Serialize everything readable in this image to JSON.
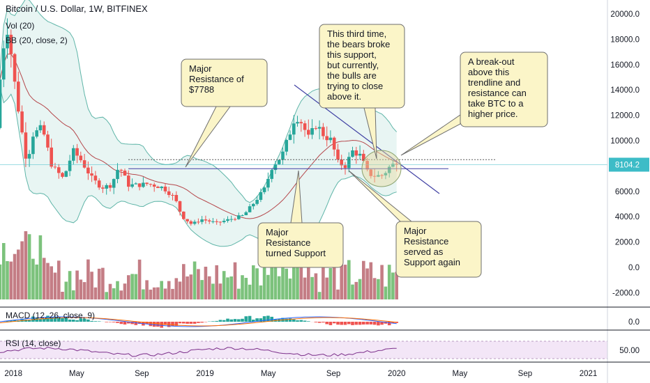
{
  "legends": {
    "title": "Bitcoin / U.S. Dollar, 1W, BITFINEX",
    "vol": "Vol (20)",
    "bb": "BB (20, close, 2)",
    "macd": "MACD (12, 26, close, 9)",
    "rsi": "RSI (14, close)"
  },
  "price_axis": {
    "labels": [
      "20000.0",
      "18000.0",
      "16000.0",
      "14000.0",
      "12000.0",
      "10000.0",
      "6000.0",
      "4000.0",
      "2000.0",
      "0.0",
      "-2000.0"
    ],
    "values": [
      20000,
      18000,
      16000,
      14000,
      12000,
      10000,
      6000,
      4000,
      2000,
      0,
      -2000
    ],
    "last_price_label": "8104.2",
    "last_price": 8104.2
  },
  "macd_axis": {
    "labels": [
      "0.0"
    ],
    "values": [
      0
    ]
  },
  "rsi_axis": {
    "labels": [
      "50.00"
    ],
    "values": [
      50
    ]
  },
  "time_axis": {
    "labels": [
      "2018",
      "May",
      "Sep",
      "2019",
      "May",
      "Sep",
      "2020",
      "May",
      "Sep",
      "2021"
    ],
    "positions": [
      2018.0,
      2018.33,
      2018.67,
      2019.0,
      2019.33,
      2019.67,
      2020.0,
      2020.33,
      2020.67,
      2021.0
    ]
  },
  "callouts": [
    {
      "id": "resistance-7788",
      "lines": [
        "Major",
        "Resistance of",
        "$7788"
      ]
    },
    {
      "id": "bears-broke",
      "lines": [
        "This third time,",
        "the bears broke",
        "this support,",
        "but currently,",
        "the bulls are",
        "trying to close",
        "above it."
      ]
    },
    {
      "id": "breakout",
      "lines": [
        "A break-out",
        "above this",
        "trendline and",
        "resistance can",
        "take BTC to a",
        "higher price."
      ]
    },
    {
      "id": "turned-support",
      "lines": [
        "Major",
        "Resistance",
        "turned Support"
      ]
    },
    {
      "id": "served-support",
      "lines": [
        "Major",
        "Resistance",
        "served as",
        "Support again"
      ]
    }
  ],
  "colors": {
    "up": "#26a69a",
    "down": "#ef5350",
    "vol_up": "#7cc27c",
    "vol_down": "#c47d85",
    "bb_fill": "#e8f5f3",
    "bb_band": "#5fb5a8",
    "bb_basis": "#b5474b",
    "callout_fill": "#fbf5c8",
    "callout_stroke": "#6e6e6e",
    "trendline": "#3f3fa3",
    "last_price_bg": "#3dbcc7",
    "rsi_band": "#f3e6f7",
    "rsi_line": "#7b2e8a",
    "macd_line": "#2962ff",
    "macd_signal": "#ff6d00"
  },
  "chart_data": {
    "type": "candlestick",
    "title": "Bitcoin / U.S. Dollar, 1W, BITFINEX",
    "interval": "1W",
    "x_range": [
      2017.93,
      2021.1
    ],
    "ylim": [
      -2500,
      21000
    ],
    "horizontal_level": 7788,
    "dotted_level": 8500,
    "last_price": 8104.2,
    "keypoints": [
      {
        "t": 2017.93,
        "price": 11000
      },
      {
        "t": 2017.96,
        "price": 17000
      },
      {
        "t": 2017.99,
        "price": 19000
      },
      {
        "t": 2018.03,
        "price": 14000
      },
      {
        "t": 2018.06,
        "price": 11000
      },
      {
        "t": 2018.09,
        "price": 8200
      },
      {
        "t": 2018.12,
        "price": 10500
      },
      {
        "t": 2018.17,
        "price": 11000
      },
      {
        "t": 2018.22,
        "price": 8000
      },
      {
        "t": 2018.28,
        "price": 7000
      },
      {
        "t": 2018.33,
        "price": 9200
      },
      {
        "t": 2018.37,
        "price": 8500
      },
      {
        "t": 2018.43,
        "price": 7000
      },
      {
        "t": 2018.48,
        "price": 6300
      },
      {
        "t": 2018.53,
        "price": 6500
      },
      {
        "t": 2018.57,
        "price": 8000
      },
      {
        "t": 2018.62,
        "price": 6500
      },
      {
        "t": 2018.67,
        "price": 6500
      },
      {
        "t": 2018.72,
        "price": 6600
      },
      {
        "t": 2018.8,
        "price": 6300
      },
      {
        "t": 2018.86,
        "price": 5500
      },
      {
        "t": 2018.9,
        "price": 4000
      },
      {
        "t": 2018.95,
        "price": 3400
      },
      {
        "t": 2019.0,
        "price": 3800
      },
      {
        "t": 2019.08,
        "price": 3500
      },
      {
        "t": 2019.15,
        "price": 3800
      },
      {
        "t": 2019.22,
        "price": 4100
      },
      {
        "t": 2019.28,
        "price": 5200
      },
      {
        "t": 2019.33,
        "price": 6200
      },
      {
        "t": 2019.37,
        "price": 8000
      },
      {
        "t": 2019.42,
        "price": 8800
      },
      {
        "t": 2019.46,
        "price": 10500
      },
      {
        "t": 2019.49,
        "price": 12000
      },
      {
        "t": 2019.52,
        "price": 11500
      },
      {
        "t": 2019.56,
        "price": 10200
      },
      {
        "t": 2019.6,
        "price": 11300
      },
      {
        "t": 2019.64,
        "price": 10400
      },
      {
        "t": 2019.68,
        "price": 10000
      },
      {
        "t": 2019.71,
        "price": 8300
      },
      {
        "t": 2019.75,
        "price": 8000
      },
      {
        "t": 2019.79,
        "price": 9200
      },
      {
        "t": 2019.83,
        "price": 8800
      },
      {
        "t": 2019.87,
        "price": 7400
      },
      {
        "t": 2019.91,
        "price": 7200
      },
      {
        "t": 2019.95,
        "price": 7300
      },
      {
        "t": 2019.99,
        "price": 8100
      }
    ]
  }
}
